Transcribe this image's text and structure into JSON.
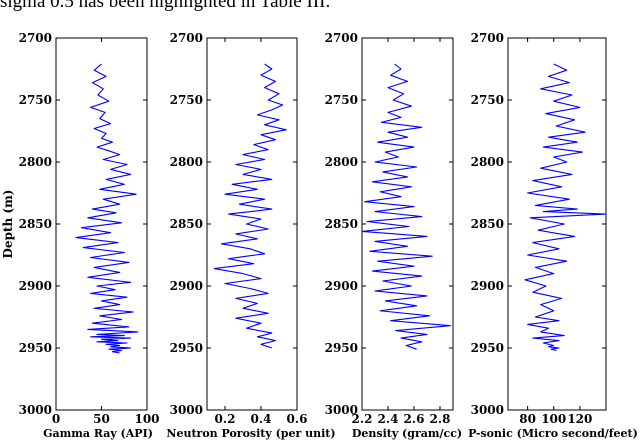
{
  "top_text": "sigma 0.5 has been highlighted in Table III.",
  "colors": {
    "trace": "#0000ff",
    "frame": "#000000"
  },
  "shared_ylabel": "Depth (m)",
  "chart_data": [
    {
      "type": "line",
      "orientation": "vertical-depth-log",
      "xlabel": "Gamma Ray (API)",
      "ylabel": "Depth (m)",
      "xlim": [
        0,
        100
      ],
      "ylim": [
        2700,
        3000
      ],
      "y_inverted": true,
      "x_ticks": [
        "0",
        "50",
        "100"
      ],
      "x_tick_values": [
        0,
        50,
        100
      ],
      "y_ticks": [
        "2700",
        "2750",
        "2800",
        "2850",
        "2900",
        "2950",
        "3000"
      ],
      "y_tick_values": [
        2700,
        2750,
        2800,
        2850,
        2900,
        2950,
        3000
      ],
      "grid": false,
      "series": [
        {
          "x": [
            50,
            42,
            55,
            40,
            52,
            46,
            58,
            38,
            54,
            48,
            60,
            42,
            55,
            50,
            62,
            45,
            58,
            70,
            52,
            78,
            60,
            82,
            55,
            75,
            48,
            88,
            52,
            70,
            40,
            66,
            35,
            72,
            28,
            60,
            22,
            68,
            30,
            75,
            38,
            80,
            42,
            70,
            35,
            82,
            45,
            65,
            38,
            78,
            50,
            70,
            42,
            85,
            48,
            72,
            40,
            80,
            35,
            90,
            45,
            75,
            38,
            82,
            50,
            68,
            45,
            78,
            55,
            70,
            60,
            82,
            58,
            72,
            62,
            70
          ],
          "y": [
            2721,
            2726,
            2731,
            2736,
            2741,
            2746,
            2751,
            2756,
            2760,
            2765,
            2769,
            2773,
            2777,
            2781,
            2784,
            2788,
            2791,
            2794,
            2798,
            2802,
            2806,
            2810,
            2814,
            2818,
            2822,
            2826,
            2830,
            2834,
            2838,
            2841,
            2845,
            2849,
            2853,
            2857,
            2861,
            2865,
            2869,
            2873,
            2877,
            2881,
            2885,
            2889,
            2893,
            2897,
            2900,
            2903,
            2906,
            2909,
            2912,
            2915,
            2918,
            2921,
            2924,
            2927,
            2930,
            2933,
            2935,
            2937,
            2939,
            2940,
            2941,
            2942,
            2943,
            2944,
            2945,
            2946,
            2947,
            2948,
            2949,
            2950,
            2951,
            2952,
            2953,
            2954
          ]
        }
      ]
    },
    {
      "type": "line",
      "orientation": "vertical-depth-log",
      "xlabel": "Neutron Porosity (per unit)",
      "ylabel": "",
      "xlim": [
        0.1,
        0.6
      ],
      "ylim": [
        2700,
        3000
      ],
      "y_inverted": true,
      "x_ticks": [
        "0.2",
        "0.4",
        "0.6"
      ],
      "x_tick_values": [
        0.2,
        0.4,
        0.6
      ],
      "y_ticks": [
        "2700",
        "2750",
        "2800",
        "2850",
        "2900",
        "2950",
        "3000"
      ],
      "y_tick_values": [
        2700,
        2750,
        2800,
        2850,
        2900,
        2950,
        3000
      ],
      "grid": false,
      "series": [
        {
          "x": [
            0.42,
            0.46,
            0.4,
            0.48,
            0.42,
            0.5,
            0.44,
            0.52,
            0.46,
            0.38,
            0.5,
            0.42,
            0.54,
            0.4,
            0.48,
            0.36,
            0.44,
            0.3,
            0.42,
            0.26,
            0.4,
            0.3,
            0.46,
            0.24,
            0.38,
            0.2,
            0.42,
            0.28,
            0.46,
            0.22,
            0.4,
            0.32,
            0.44,
            0.26,
            0.38,
            0.18,
            0.34,
            0.42,
            0.22,
            0.36,
            0.14,
            0.3,
            0.4,
            0.2,
            0.34,
            0.44,
            0.26,
            0.38,
            0.3,
            0.44,
            0.26,
            0.4,
            0.32,
            0.46,
            0.38,
            0.48,
            0.4,
            0.46
          ],
          "y": [
            2721,
            2725,
            2730,
            2735,
            2740,
            2745,
            2750,
            2754,
            2758,
            2762,
            2766,
            2770,
            2774,
            2778,
            2782,
            2786,
            2790,
            2794,
            2798,
            2802,
            2806,
            2810,
            2814,
            2818,
            2822,
            2826,
            2830,
            2834,
            2838,
            2842,
            2846,
            2850,
            2854,
            2858,
            2862,
            2866,
            2870,
            2874,
            2878,
            2882,
            2886,
            2890,
            2894,
            2898,
            2902,
            2906,
            2910,
            2914,
            2918,
            2922,
            2926,
            2930,
            2934,
            2938,
            2941,
            2944,
            2947,
            2950
          ]
        }
      ]
    },
    {
      "type": "line",
      "orientation": "vertical-depth-log",
      "xlabel": "Density (gram/cc)",
      "ylabel": "",
      "xlim": [
        2.2,
        2.9
      ],
      "ylim": [
        2700,
        3000
      ],
      "y_inverted": true,
      "x_ticks": [
        "2.2",
        "2.4",
        "2.6",
        "2.8"
      ],
      "x_tick_values": [
        2.2,
        2.4,
        2.6,
        2.8
      ],
      "y_ticks": [
        "2700",
        "2750",
        "2800",
        "2850",
        "2900",
        "2950",
        "3000"
      ],
      "y_tick_values": [
        2700,
        2750,
        2800,
        2850,
        2900,
        2950,
        3000
      ],
      "grid": false,
      "series": [
        {
          "x": [
            2.45,
            2.5,
            2.42,
            2.55,
            2.4,
            2.52,
            2.44,
            2.58,
            2.4,
            2.5,
            2.35,
            2.66,
            2.4,
            2.55,
            2.32,
            2.6,
            2.38,
            2.48,
            2.3,
            2.62,
            2.36,
            2.55,
            2.28,
            2.58,
            2.34,
            2.5,
            2.22,
            2.6,
            2.3,
            2.66,
            2.24,
            2.56,
            2.2,
            2.7,
            2.3,
            2.55,
            2.26,
            2.74,
            2.32,
            2.6,
            2.28,
            2.66,
            2.36,
            2.58,
            2.3,
            2.7,
            2.38,
            2.62,
            2.34,
            2.72,
            2.42,
            2.88,
            2.46,
            2.7,
            2.5,
            2.66,
            2.54,
            2.62
          ],
          "y": [
            2721,
            2725,
            2730,
            2735,
            2740,
            2745,
            2750,
            2755,
            2760,
            2764,
            2768,
            2772,
            2776,
            2780,
            2784,
            2788,
            2792,
            2796,
            2800,
            2804,
            2808,
            2812,
            2816,
            2820,
            2824,
            2828,
            2832,
            2836,
            2840,
            2844,
            2848,
            2852,
            2856,
            2860,
            2864,
            2868,
            2872,
            2876,
            2880,
            2884,
            2888,
            2892,
            2896,
            2900,
            2904,
            2908,
            2912,
            2916,
            2920,
            2924,
            2928,
            2932,
            2936,
            2939,
            2942,
            2945,
            2948,
            2951
          ]
        }
      ]
    },
    {
      "type": "line",
      "orientation": "vertical-depth-log",
      "xlabel": "P-sonic (Micro second/feet)",
      "ylabel": "",
      "xlim": [
        65,
        140
      ],
      "ylim": [
        2700,
        3000
      ],
      "y_inverted": true,
      "x_ticks": [
        "80",
        "100",
        "120"
      ],
      "x_tick_values": [
        80,
        100,
        120
      ],
      "y_ticks": [
        "2700",
        "2750",
        "2800",
        "2850",
        "2900",
        "2950",
        "3000"
      ],
      "y_tick_values": [
        2700,
        2750,
        2800,
        2850,
        2900,
        2950,
        3000
      ],
      "grid": false,
      "series": [
        {
          "x": [
            100,
            110,
            96,
            112,
            90,
            114,
            100,
            120,
            94,
            116,
            102,
            124,
            96,
            118,
            92,
            122,
            100,
            110,
            90,
            114,
            84,
            106,
            80,
            112,
            86,
            118,
            92,
            140,
            82,
            108,
            88,
            116,
            84,
            104,
            80,
            110,
            86,
            100,
            78,
            94,
            84,
            106,
            90,
            100,
            86,
            104,
            80,
            96,
            90,
            108,
            84,
            104,
            92,
            100,
            96,
            104,
            98,
            102
          ],
          "y": [
            2721,
            2726,
            2731,
            2736,
            2741,
            2746,
            2751,
            2756,
            2761,
            2766,
            2771,
            2776,
            2780,
            2784,
            2788,
            2792,
            2796,
            2800,
            2805,
            2810,
            2815,
            2820,
            2825,
            2830,
            2835,
            2838,
            2840,
            2842,
            2845,
            2850,
            2855,
            2860,
            2865,
            2870,
            2875,
            2880,
            2885,
            2890,
            2895,
            2900,
            2905,
            2910,
            2915,
            2920,
            2925,
            2928,
            2931,
            2934,
            2937,
            2940,
            2942,
            2944,
            2946,
            2948,
            2949,
            2950,
            2951,
            2952
          ]
        }
      ]
    }
  ]
}
